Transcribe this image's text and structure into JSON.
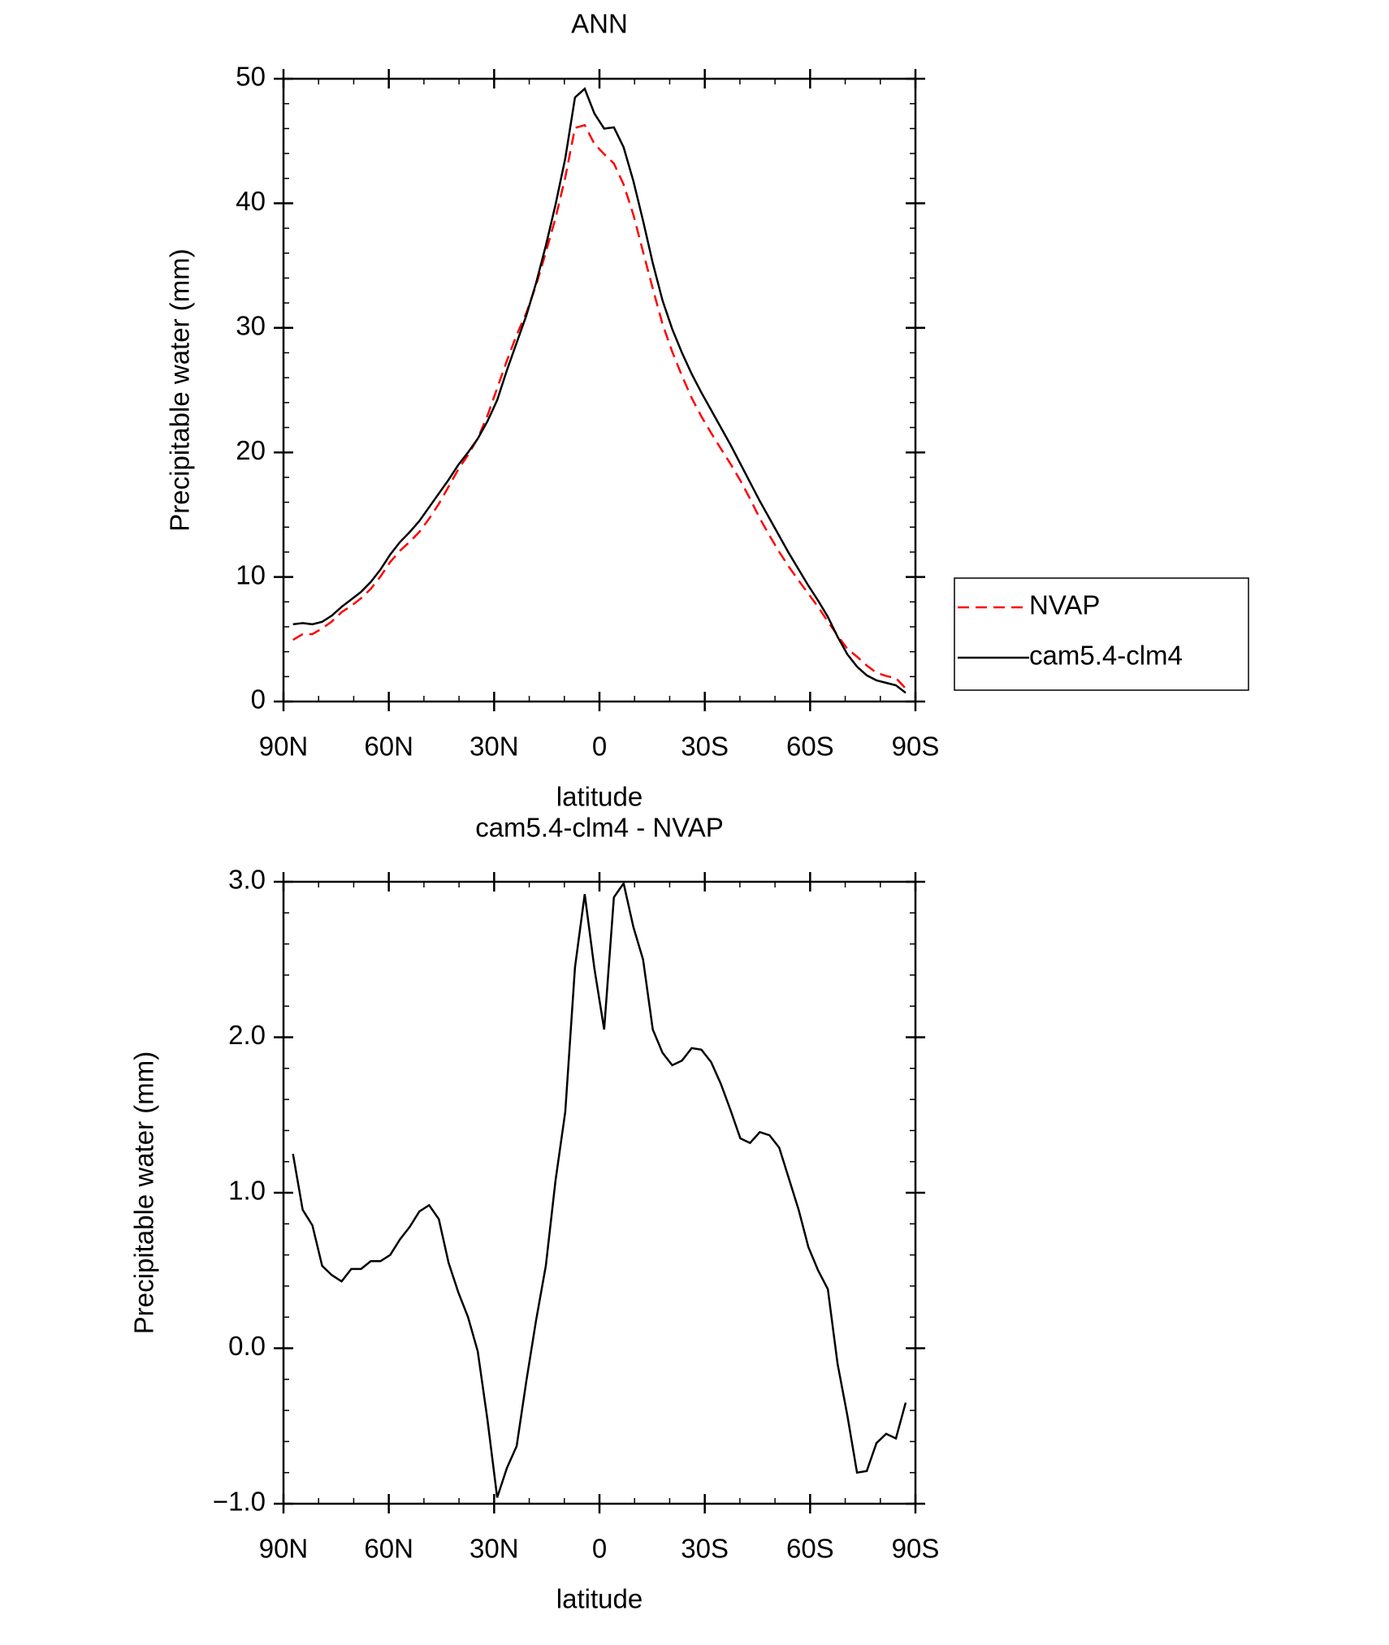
{
  "chart_data": [
    {
      "type": "line",
      "title": "ANN",
      "xlabel": "latitude",
      "ylabel": "Precipitable water (mm)",
      "x": [
        87.3,
        84.53,
        81.76,
        78.99,
        76.22,
        73.45,
        70.68,
        67.91,
        65.14,
        62.37,
        59.6,
        56.83,
        54.06,
        51.29,
        48.52,
        45.75,
        42.98,
        40.21,
        37.44,
        34.67,
        31.9,
        29.13,
        26.36,
        23.59,
        20.82,
        18.05,
        15.28,
        12.51,
        9.74,
        6.97,
        4.2,
        1.43,
        -1.34,
        -4.11,
        -6.88,
        -9.65,
        -12.42,
        -15.19,
        -17.96,
        -20.73,
        -23.5,
        -26.27,
        -29.04,
        -31.81,
        -34.58,
        -37.35,
        -40.12,
        -42.89,
        -45.66,
        -48.43,
        -51.2,
        -53.97,
        -56.74,
        -59.51,
        -62.28,
        -65.05,
        -67.82,
        -70.59,
        -73.36,
        -76.13,
        -78.9,
        -81.67,
        -84.44,
        -87.21
      ],
      "xlim": [
        90,
        -90
      ],
      "xticks": [
        {
          "value": 90,
          "label": "90N"
        },
        {
          "value": 60,
          "label": "60N"
        },
        {
          "value": 30,
          "label": "30N"
        },
        0,
        {
          "value": -30,
          "label": "30S"
        },
        {
          "value": -60,
          "label": "60S"
        },
        {
          "value": -90,
          "label": "90S"
        }
      ],
      "ylim": [
        0,
        50
      ],
      "yticks": [
        0,
        10,
        20,
        30,
        40,
        50
      ],
      "legend": "right",
      "series": [
        {
          "name": "NVAP",
          "color": "#ff0000",
          "line_style": "dashed",
          "values": [
            4.95,
            5.41,
            5.41,
            5.87,
            6.43,
            7.17,
            7.69,
            8.29,
            9.04,
            10.04,
            11.2,
            12.1,
            12.82,
            13.62,
            14.68,
            15.87,
            17.25,
            18.64,
            19.8,
            21.12,
            22.96,
            25.16,
            27.37,
            29.43,
            31.21,
            33.42,
            36.07,
            38.82,
            42.08,
            46.05,
            46.28,
            44.76,
            43.95,
            43.2,
            41.51,
            39.09,
            36.1,
            33.15,
            30.3,
            28.08,
            26.15,
            24.37,
            22.88,
            21.56,
            20.3,
            19.07,
            17.75,
            16.28,
            14.71,
            13.33,
            12.01,
            10.81,
            9.71,
            8.65,
            7.6,
            6.42,
            5.3,
            4.23,
            3.6,
            2.89,
            2.31,
            2.05,
            1.88,
            1.05
          ]
        },
        {
          "name": "cam5.4-clm4",
          "color": "#000000",
          "line_style": "solid",
          "values": [
            6.2,
            6.3,
            6.2,
            6.4,
            6.9,
            7.6,
            8.2,
            8.8,
            9.6,
            10.6,
            11.8,
            12.8,
            13.6,
            14.5,
            15.6,
            16.7,
            17.8,
            19.0,
            20.0,
            21.1,
            22.5,
            24.2,
            26.6,
            28.8,
            31.0,
            33.6,
            36.6,
            39.9,
            43.6,
            48.5,
            49.2,
            47.2,
            46.0,
            46.1,
            44.5,
            41.8,
            38.6,
            35.2,
            32.2,
            29.9,
            28.0,
            26.3,
            24.8,
            23.4,
            22.0,
            20.6,
            19.1,
            17.6,
            16.1,
            14.7,
            13.3,
            11.9,
            10.6,
            9.3,
            8.1,
            6.8,
            5.2,
            3.8,
            2.8,
            2.1,
            1.7,
            1.5,
            1.3,
            0.7
          ]
        }
      ]
    },
    {
      "type": "line",
      "title": "cam5.4-clm4 - NVAP",
      "xlabel": "latitude",
      "ylabel": "Precipitable water (mm)",
      "x": [
        87.3,
        84.53,
        81.76,
        78.99,
        76.22,
        73.45,
        70.68,
        67.91,
        65.14,
        62.37,
        59.6,
        56.83,
        54.06,
        51.29,
        48.52,
        45.75,
        42.98,
        40.21,
        37.44,
        34.67,
        31.9,
        29.13,
        26.36,
        23.59,
        20.82,
        18.05,
        15.28,
        12.51,
        9.74,
        6.97,
        4.2,
        1.43,
        -1.34,
        -4.11,
        -6.88,
        -9.65,
        -12.42,
        -15.19,
        -17.96,
        -20.73,
        -23.5,
        -26.27,
        -29.04,
        -31.81,
        -34.58,
        -37.35,
        -40.12,
        -42.89,
        -45.66,
        -48.43,
        -51.2,
        -53.97,
        -56.74,
        -59.51,
        -62.28,
        -65.05,
        -67.82,
        -70.59,
        -73.36,
        -76.13,
        -78.9,
        -81.67,
        -84.44,
        -87.21
      ],
      "xlim": [
        90,
        -90
      ],
      "xticks": [
        {
          "value": 90,
          "label": "90N"
        },
        {
          "value": 60,
          "label": "60N"
        },
        {
          "value": 30,
          "label": "30N"
        },
        0,
        {
          "value": -30,
          "label": "30S"
        },
        {
          "value": -60,
          "label": "60S"
        },
        {
          "value": -90,
          "label": "90S"
        }
      ],
      "ylim": [
        -1,
        3
      ],
      "yticks": [
        {
          "value": -1,
          "label": "−1.0"
        },
        {
          "value": 0,
          "label": "0.0"
        },
        {
          "value": 1,
          "label": "1.0"
        },
        {
          "value": 2,
          "label": "2.0"
        },
        {
          "value": 3,
          "label": "3.0"
        }
      ],
      "series": [
        {
          "color": "#000000",
          "line_style": "solid",
          "values": [
            1.25,
            0.89,
            0.79,
            0.53,
            0.47,
            0.43,
            0.51,
            0.51,
            0.56,
            0.56,
            0.6,
            0.7,
            0.78,
            0.88,
            0.92,
            0.83,
            0.55,
            0.36,
            0.2,
            -0.02,
            -0.46,
            -0.96,
            -0.77,
            -0.63,
            -0.21,
            0.18,
            0.53,
            1.08,
            1.52,
            2.45,
            2.92,
            2.44,
            2.05,
            2.9,
            2.99,
            2.71,
            2.5,
            2.05,
            1.9,
            1.82,
            1.85,
            1.93,
            1.92,
            1.84,
            1.7,
            1.53,
            1.35,
            1.32,
            1.39,
            1.37,
            1.29,
            1.09,
            0.89,
            0.65,
            0.5,
            0.38,
            -0.1,
            -0.43,
            -0.8,
            -0.79,
            -0.61,
            -0.55,
            -0.58,
            -0.35
          ]
        }
      ]
    }
  ]
}
